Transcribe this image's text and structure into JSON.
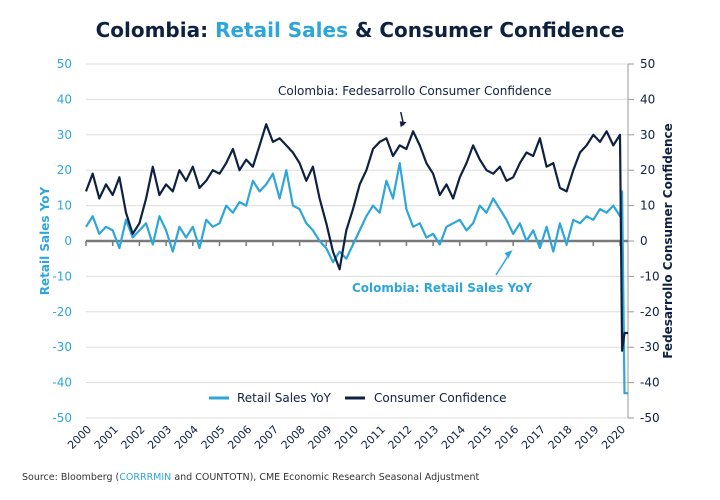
{
  "title": {
    "part1": "Colombia: ",
    "part2": "Retail Sales",
    "part3": " & Consumer Confidence"
  },
  "source": {
    "prefix": "Source: Bloomberg (",
    "highlight": "CORRRMIN",
    "suffix": " and COUNTOTN), CME Economic Research Seasonal Adjustment"
  },
  "colors": {
    "retail": "#2ea6d9",
    "confidence": "#0f2140",
    "zero_line": "#7a7a7a",
    "grid": "#dddddd"
  },
  "chart_data": {
    "type": "line",
    "title": "Colombia: Retail Sales & Consumer Confidence",
    "xlabel": "",
    "ylabel": "Retail Sales YoY",
    "ylabel_right": "Fedesarrollo Consumer Confidence",
    "ylim": [
      -50,
      50
    ],
    "ylim_right": [
      -50,
      50
    ],
    "yticks": [
      50,
      40,
      30,
      20,
      10,
      0,
      -10,
      -20,
      -30,
      -40,
      -50
    ],
    "xlim": [
      2000,
      2020.3
    ],
    "xticks": [
      "2000",
      "2001",
      "2002",
      "2003",
      "2004",
      "2005",
      "2006",
      "2007",
      "2008",
      "2009",
      "2010",
      "2011",
      "2012",
      "2013",
      "2014",
      "2015",
      "2016",
      "2017",
      "2018",
      "2019",
      "2020"
    ],
    "grid": true,
    "legend": {
      "placement": "bottom-center",
      "entries": [
        "Retail Sales YoY",
        "Consumer Confidence"
      ]
    },
    "annotations": [
      {
        "text": "Colombia: Fedesarrollo Consumer Confidence",
        "series": "Consumer Confidence",
        "arrow_to": [
          2011.9,
          31
        ]
      },
      {
        "text": "Colombia: Retail Sales YoY",
        "series": "Retail Sales YoY",
        "arrow_to": [
          2015.9,
          -2
        ]
      }
    ],
    "series": [
      {
        "name": "Retail Sales YoY",
        "axis": "left",
        "x": [
          2000.0,
          2000.25,
          2000.5,
          2000.75,
          2001.0,
          2001.25,
          2001.5,
          2001.75,
          2002.0,
          2002.25,
          2002.5,
          2002.75,
          2003.0,
          2003.25,
          2003.5,
          2003.75,
          2004.0,
          2004.25,
          2004.5,
          2004.75,
          2005.0,
          2005.25,
          2005.5,
          2005.75,
          2006.0,
          2006.25,
          2006.5,
          2006.75,
          2007.0,
          2007.25,
          2007.5,
          2007.75,
          2008.0,
          2008.25,
          2008.5,
          2008.75,
          2009.0,
          2009.25,
          2009.5,
          2009.75,
          2010.0,
          2010.25,
          2010.5,
          2010.75,
          2011.0,
          2011.25,
          2011.5,
          2011.75,
          2012.0,
          2012.25,
          2012.5,
          2012.75,
          2013.0,
          2013.25,
          2013.5,
          2013.75,
          2014.0,
          2014.25,
          2014.5,
          2014.75,
          2015.0,
          2015.25,
          2015.5,
          2015.75,
          2016.0,
          2016.25,
          2016.5,
          2016.75,
          2017.0,
          2017.25,
          2017.5,
          2017.75,
          2018.0,
          2018.25,
          2018.5,
          2018.75,
          2019.0,
          2019.25,
          2019.5,
          2019.75,
          2020.0,
          2020.08,
          2020.17,
          2020.3
        ],
        "values": [
          4,
          7,
          2,
          4,
          3,
          -2,
          6,
          1,
          3,
          5,
          -1,
          7,
          3,
          -3,
          4,
          1,
          4,
          -2,
          6,
          4,
          5,
          10,
          8,
          11,
          10,
          17,
          14,
          16,
          19,
          12,
          20,
          10,
          9,
          5,
          3,
          0,
          -2,
          -6,
          -3,
          -5,
          -1,
          3,
          7,
          10,
          8,
          17,
          12,
          22,
          9,
          4,
          5,
          1,
          2,
          -1,
          4,
          5,
          6,
          3,
          5,
          10,
          8,
          12,
          9,
          6,
          2,
          5,
          0,
          3,
          -2,
          4,
          -3,
          5,
          -1,
          6,
          5,
          7,
          6,
          9,
          8,
          10,
          7,
          14,
          -43,
          -43
        ]
      },
      {
        "name": "Consumer Confidence",
        "axis": "right",
        "x": [
          2000.0,
          2000.25,
          2000.5,
          2000.75,
          2001.0,
          2001.25,
          2001.5,
          2001.75,
          2002.0,
          2002.25,
          2002.5,
          2002.75,
          2003.0,
          2003.25,
          2003.5,
          2003.75,
          2004.0,
          2004.25,
          2004.5,
          2004.75,
          2005.0,
          2005.25,
          2005.5,
          2005.75,
          2006.0,
          2006.25,
          2006.5,
          2006.75,
          2007.0,
          2007.25,
          2007.5,
          2007.75,
          2008.0,
          2008.25,
          2008.5,
          2008.75,
          2009.0,
          2009.25,
          2009.5,
          2009.75,
          2010.0,
          2010.25,
          2010.5,
          2010.75,
          2011.0,
          2011.25,
          2011.5,
          2011.75,
          2012.0,
          2012.25,
          2012.5,
          2012.75,
          2013.0,
          2013.25,
          2013.5,
          2013.75,
          2014.0,
          2014.25,
          2014.5,
          2014.75,
          2015.0,
          2015.25,
          2015.5,
          2015.75,
          2016.0,
          2016.25,
          2016.5,
          2016.75,
          2017.0,
          2017.25,
          2017.5,
          2017.75,
          2018.0,
          2018.25,
          2018.5,
          2018.75,
          2019.0,
          2019.25,
          2019.5,
          2019.75,
          2020.0,
          2020.08,
          2020.17,
          2020.3
        ],
        "values": [
          14,
          19,
          12,
          16,
          13,
          18,
          8,
          2,
          5,
          12,
          21,
          13,
          16,
          14,
          20,
          17,
          21,
          15,
          17,
          20,
          19,
          22,
          26,
          20,
          23,
          21,
          27,
          33,
          28,
          29,
          27,
          25,
          22,
          17,
          21,
          12,
          5,
          -3,
          -8,
          3,
          9,
          16,
          20,
          26,
          28,
          29,
          24,
          27,
          26,
          31,
          27,
          22,
          19,
          13,
          16,
          12,
          18,
          22,
          27,
          23,
          20,
          19,
          21,
          17,
          18,
          22,
          25,
          24,
          29,
          21,
          22,
          15,
          14,
          20,
          25,
          27,
          30,
          28,
          31,
          27,
          30,
          -31,
          -26,
          -26
        ]
      }
    ]
  }
}
